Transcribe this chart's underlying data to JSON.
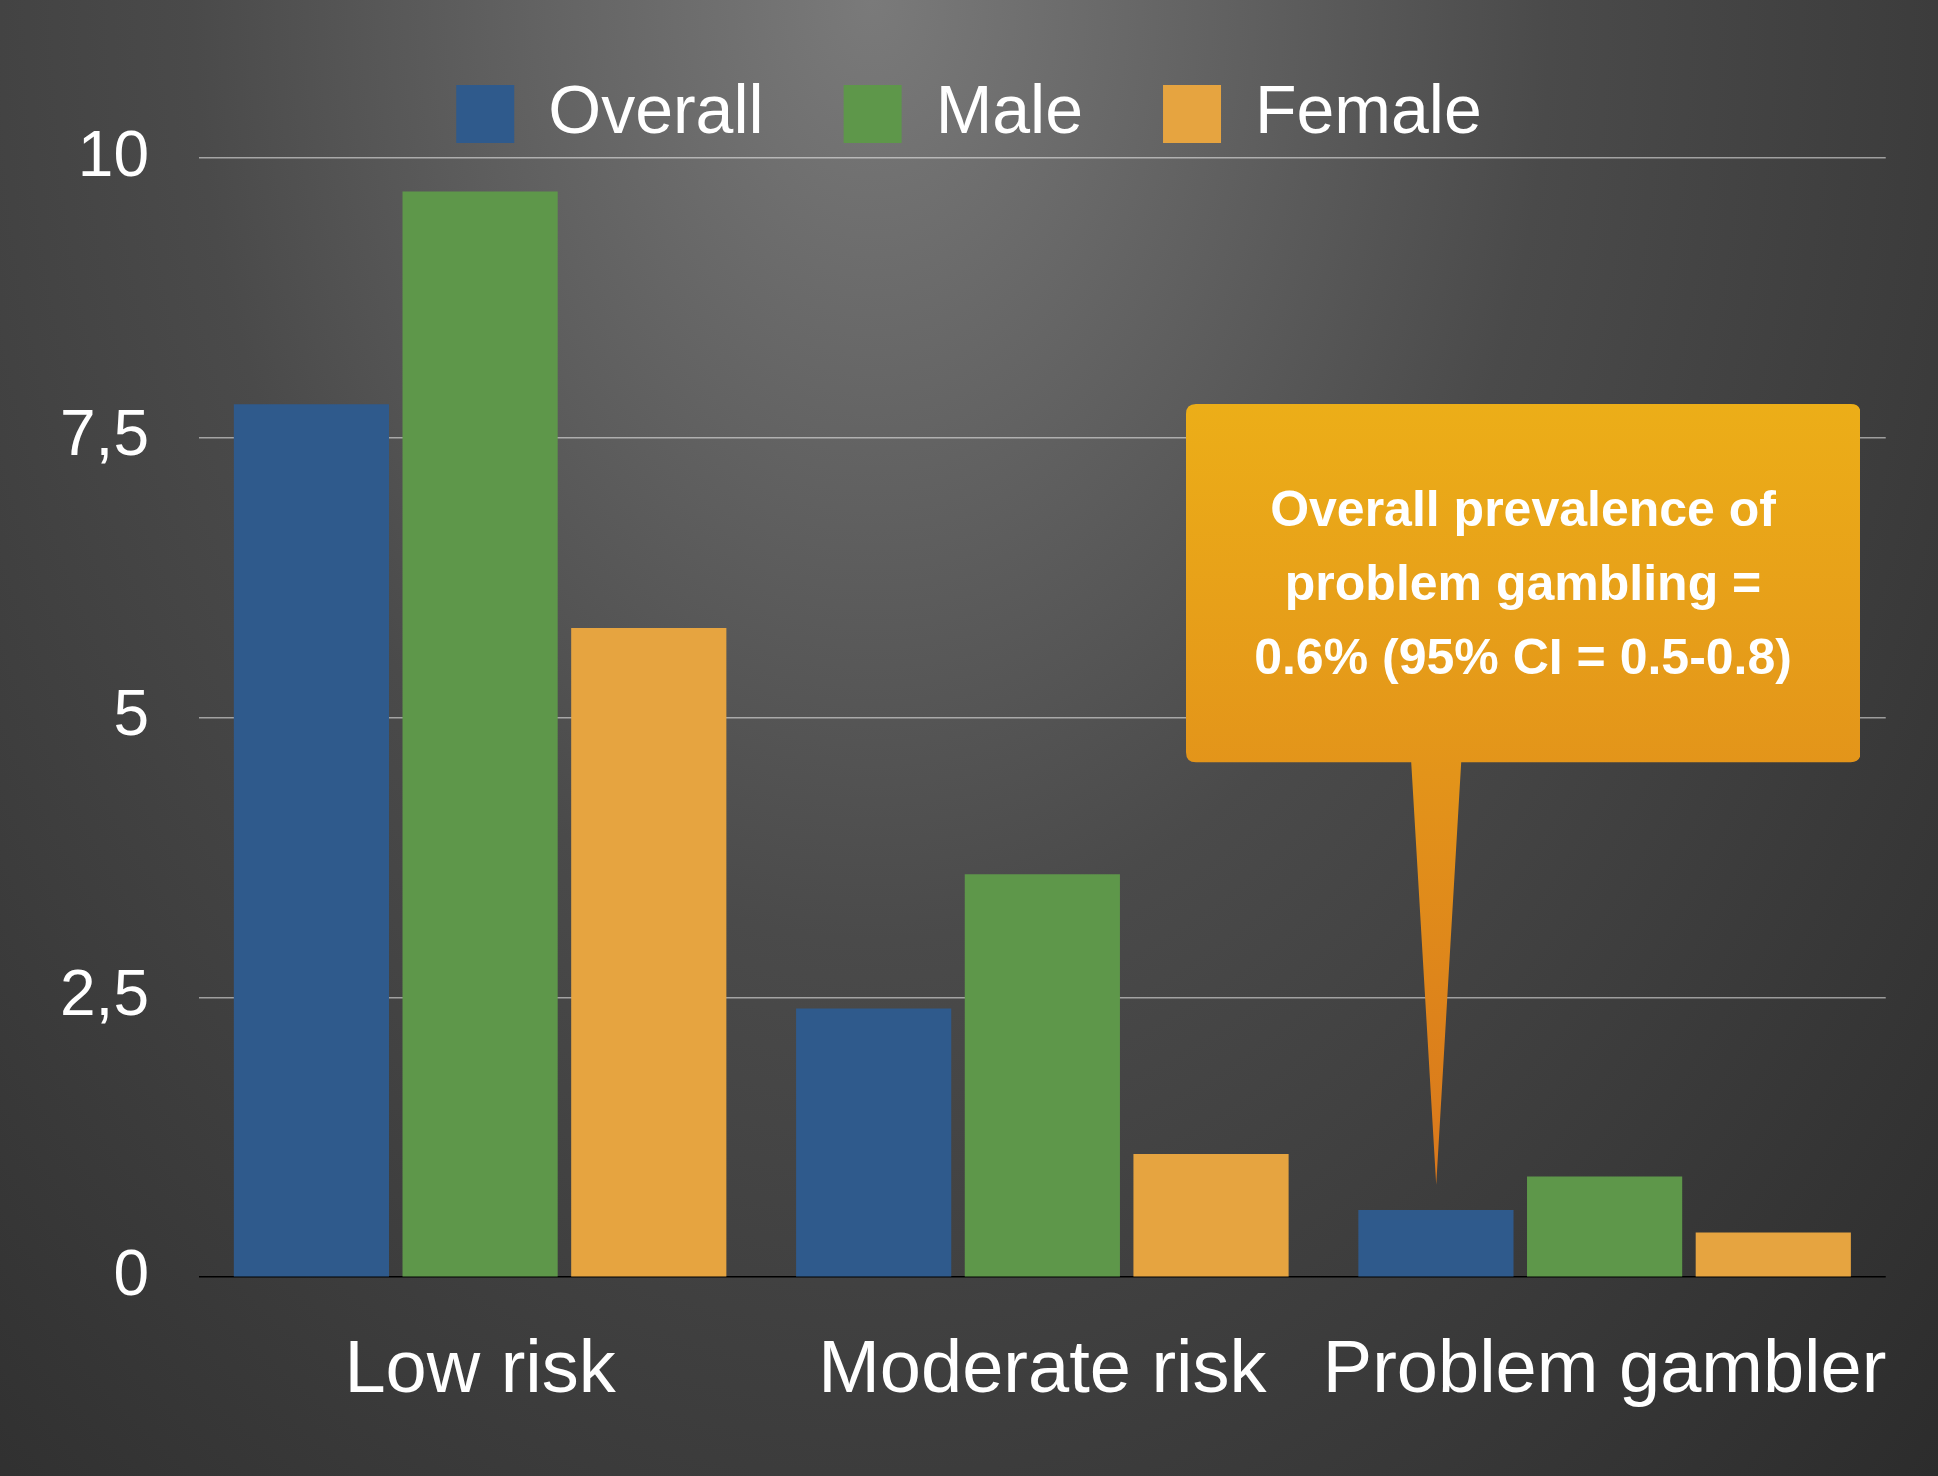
{
  "chart_data": {
    "type": "bar",
    "categories": [
      "Low risk",
      "Moderate risk",
      "Problem gambler"
    ],
    "series": [
      {
        "name": "Overall",
        "color": "#2f5a8c",
        "values": [
          7.8,
          2.4,
          0.6
        ]
      },
      {
        "name": "Male",
        "color": "#5e974a",
        "values": [
          9.7,
          3.6,
          0.9
        ]
      },
      {
        "name": "Female",
        "color": "#e6a440",
        "values": [
          5.8,
          1.1,
          0.4
        ]
      }
    ],
    "ylim": [
      0,
      10
    ],
    "yticks": [
      0,
      {
        "value": 2.5,
        "label": "2,5"
      },
      5,
      {
        "value": 7.5,
        "label": "7,5"
      },
      10
    ],
    "grid": "y",
    "legend": "top",
    "annotations": [
      "Overall prevalence of problem gambling = 0.6% (95% CI = 0.5-0.8)"
    ]
  }
}
